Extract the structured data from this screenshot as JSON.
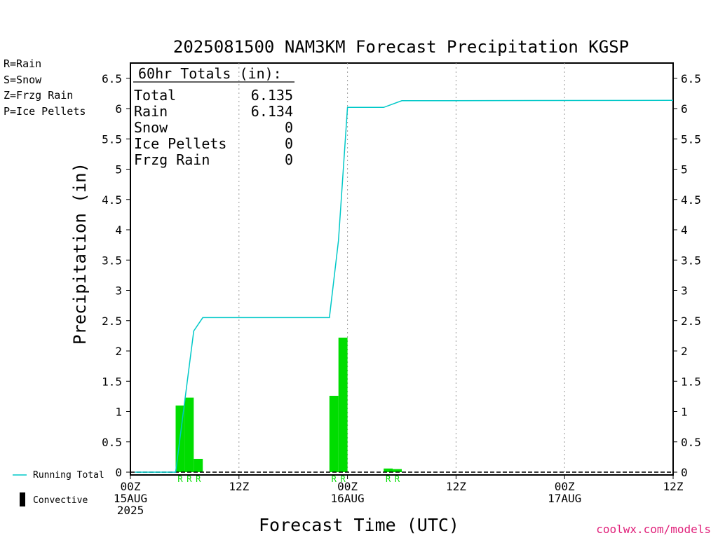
{
  "chart_data": {
    "type": "bar",
    "title": "2025081500 NAM3KM Forecast Precipitation KGSP",
    "xlabel": "Forecast Time (UTC)",
    "ylabel": "Precipitation (in)",
    "ylim": [
      0,
      6.8
    ],
    "xlim_hours": [
      0,
      60
    ],
    "y_ticks": [
      "0",
      "0.5",
      "1",
      "1.5",
      "2",
      "2.5",
      "3",
      "3.5",
      "4",
      "4.5",
      "5",
      "5.5",
      "6",
      "6.5"
    ],
    "x_ticks": [
      {
        "hour": 0,
        "line1": "00Z",
        "line2": "15AUG",
        "line3": "2025"
      },
      {
        "hour": 12,
        "line1": "12Z",
        "line2": "",
        "line3": ""
      },
      {
        "hour": 24,
        "line1": "00Z",
        "line2": "16AUG",
        "line3": ""
      },
      {
        "hour": 36,
        "line1": "12Z",
        "line2": "",
        "line3": ""
      },
      {
        "hour": 48,
        "line1": "00Z",
        "line2": "17AUG",
        "line3": ""
      },
      {
        "hour": 60,
        "line1": "12Z",
        "line2": "",
        "line3": ""
      }
    ],
    "grid": "vertical dotted at 12-hour intervals",
    "bar_color": "#00dd00",
    "line_color": "#00c8c8",
    "hourly_precip": [
      {
        "hour": 6,
        "value": 1.1,
        "ptype": "R"
      },
      {
        "hour": 7,
        "value": 1.23,
        "ptype": "R"
      },
      {
        "hour": 8,
        "value": 0.22,
        "ptype": "R"
      },
      {
        "hour": 23,
        "value": 1.26,
        "ptype": "R"
      },
      {
        "hour": 24,
        "value": 2.22,
        "ptype": "R"
      },
      {
        "hour": 29,
        "value": 0.06,
        "ptype": "R"
      },
      {
        "hour": 30,
        "value": 0.05,
        "ptype": "R"
      }
    ],
    "running_total": [
      [
        0.5,
        0
      ],
      [
        5,
        0
      ],
      [
        7,
        2.33
      ],
      [
        8,
        2.55
      ],
      [
        22,
        2.55
      ],
      [
        23,
        3.82
      ],
      [
        24,
        6.02
      ],
      [
        28,
        6.02
      ],
      [
        30,
        6.13
      ],
      [
        60,
        6.135
      ]
    ],
    "totals_box": {
      "header": "60hr Totals (in):",
      "rows": [
        {
          "label": "Total",
          "value": "6.135"
        },
        {
          "label": "Rain",
          "value": "6.134"
        },
        {
          "label": "Snow",
          "value": "0"
        },
        {
          "label": "Ice Pellets",
          "value": "0"
        },
        {
          "label": "Frzg Rain",
          "value": "0"
        }
      ]
    }
  },
  "ptype_legend": [
    {
      "text": "R=Rain",
      "color": "#00dd00"
    },
    {
      "text": "S=Snow",
      "color": "#3050ff"
    },
    {
      "text": "Z=Frzg Rain",
      "color": "#f08a3c"
    },
    {
      "text": "P=Ice Pellets",
      "color": "#e0207a"
    }
  ],
  "line_legend": {
    "running_total": "Running Total",
    "convective": "Convective"
  },
  "credit": "coolwx.com/models"
}
